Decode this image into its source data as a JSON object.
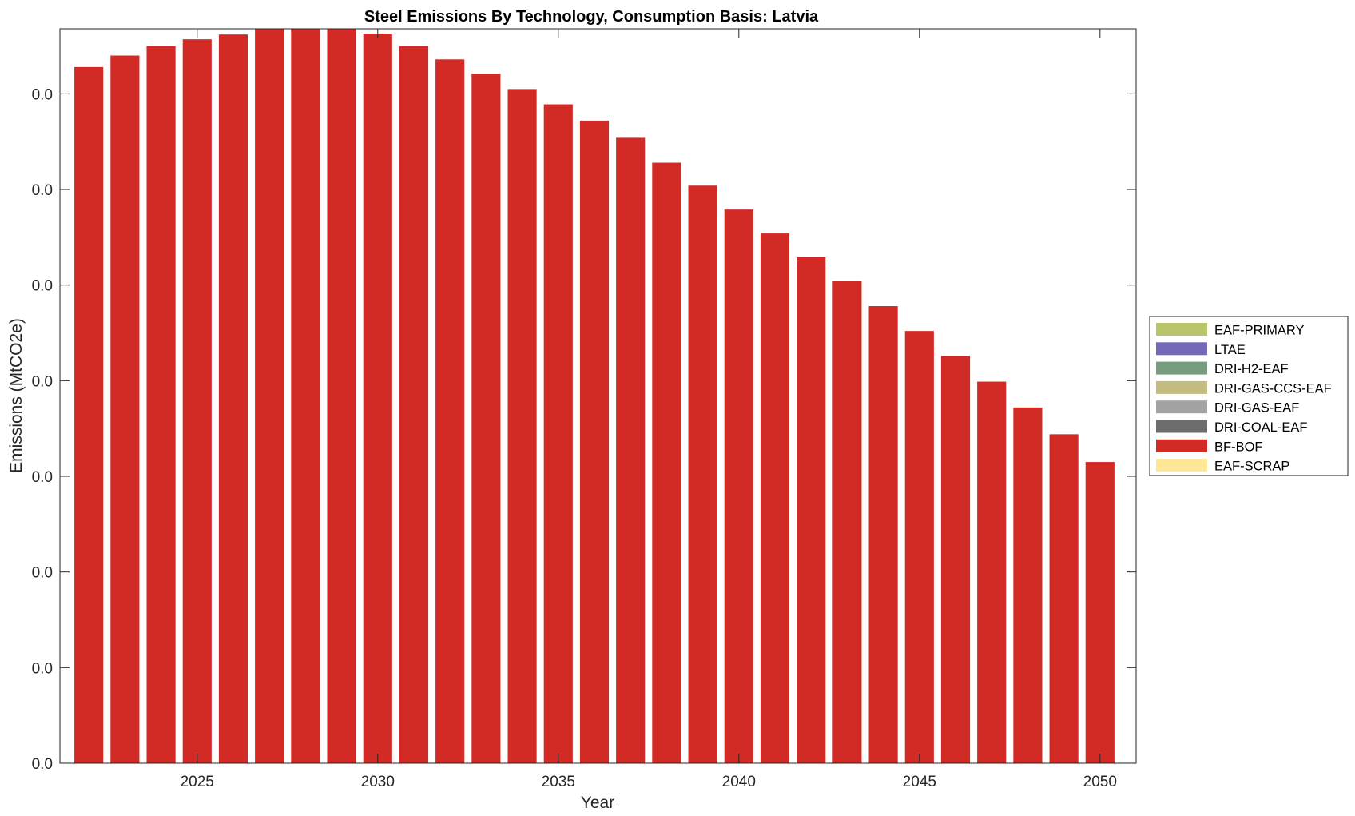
{
  "chart_data": {
    "type": "bar",
    "stacked": true,
    "title": "Steel Emissions By Technology, Consumption Basis: Latvia",
    "xlabel": "Year",
    "ylabel": "Emissions (MtCO2e)",
    "x": [
      2022,
      2023,
      2024,
      2025,
      2026,
      2027,
      2028,
      2029,
      2030,
      2031,
      2032,
      2033,
      2034,
      2035,
      2036,
      2037,
      2038,
      2039,
      2040,
      2041,
      2042,
      2043,
      2044,
      2045,
      2046,
      2047,
      2048,
      2049,
      2050
    ],
    "xticks": [
      2025,
      2030,
      2035,
      2040,
      2045,
      2050
    ],
    "xlim": [
      2021.2,
      2051.0
    ],
    "ylim": [
      0,
      0.00768
    ],
    "yticks": [
      0,
      0.001,
      0.002,
      0.003,
      0.004,
      0.005,
      0.006,
      0.007
    ],
    "ytick_labels": [
      "0.0",
      "0.0",
      "0.0",
      "0.0",
      "0.0",
      "0.0",
      "0.0",
      "0.0"
    ],
    "grid": false,
    "legend_position": "right",
    "series": [
      {
        "name": "EAF-PRIMARY",
        "color": "#b9c56b",
        "values": [
          0,
          0,
          0,
          0,
          0,
          0,
          0,
          0,
          0,
          0,
          0,
          0,
          0,
          0,
          0,
          0,
          0,
          0,
          0,
          0,
          0,
          0,
          0,
          0,
          0,
          0,
          0,
          0,
          0
        ]
      },
      {
        "name": "LTAE",
        "color": "#7269b8",
        "values": [
          0,
          0,
          0,
          0,
          0,
          0,
          0,
          0,
          0,
          0,
          0,
          0,
          0,
          0,
          0,
          0,
          0,
          0,
          0,
          0,
          0,
          0,
          0,
          0,
          0,
          0,
          0,
          0,
          0
        ]
      },
      {
        "name": "DRI-H2-EAF",
        "color": "#769d7d",
        "values": [
          0,
          0,
          0,
          0,
          0,
          0,
          0,
          0,
          0,
          0,
          0,
          0,
          0,
          0,
          0,
          0,
          0,
          0,
          0,
          0,
          0,
          0,
          0,
          0,
          0,
          0,
          0,
          0,
          0
        ]
      },
      {
        "name": "DRI-GAS-CCS-EAF",
        "color": "#c3bb7f",
        "values": [
          0,
          0,
          0,
          0,
          0,
          0,
          0,
          0,
          0,
          0,
          0,
          0,
          0,
          0,
          0,
          0,
          0,
          0,
          0,
          0,
          0,
          0,
          0,
          0,
          0,
          0,
          0,
          0,
          0
        ]
      },
      {
        "name": "DRI-GAS-EAF",
        "color": "#a3a3a3",
        "values": [
          0,
          0,
          0,
          0,
          0,
          0,
          0,
          0,
          0,
          0,
          0,
          0,
          0,
          0,
          0,
          0,
          0,
          0,
          0,
          0,
          0,
          0,
          0,
          0,
          0,
          0,
          0,
          0,
          0
        ]
      },
      {
        "name": "DRI-COAL-EAF",
        "color": "#6d6d6d",
        "values": [
          0,
          0,
          0,
          0,
          0,
          0,
          0,
          0,
          0,
          0,
          0,
          0,
          0,
          0,
          0,
          0,
          0,
          0,
          0,
          0,
          0,
          0,
          0,
          0,
          0,
          0,
          0,
          0,
          0
        ]
      },
      {
        "name": "BF-BOF",
        "color": "#d22a25",
        "values": [
          0.00728,
          0.0074,
          0.0075,
          0.00757,
          0.00762,
          0.00768,
          0.00768,
          0.00768,
          0.00763,
          0.0075,
          0.00736,
          0.00721,
          0.00705,
          0.00689,
          0.00672,
          0.00654,
          0.00628,
          0.00604,
          0.00579,
          0.00554,
          0.00529,
          0.00504,
          0.00478,
          0.00452,
          0.00426,
          0.00399,
          0.00372,
          0.00344,
          0.00315
        ]
      },
      {
        "name": "EAF-SCRAP",
        "color": "#fee797",
        "values": [
          0,
          0,
          0,
          0,
          0,
          0,
          0,
          0,
          0,
          0,
          0,
          0,
          0,
          0,
          0,
          0,
          0,
          0,
          0,
          0,
          0,
          0,
          0,
          0,
          0,
          0,
          0,
          0,
          0
        ]
      }
    ]
  }
}
